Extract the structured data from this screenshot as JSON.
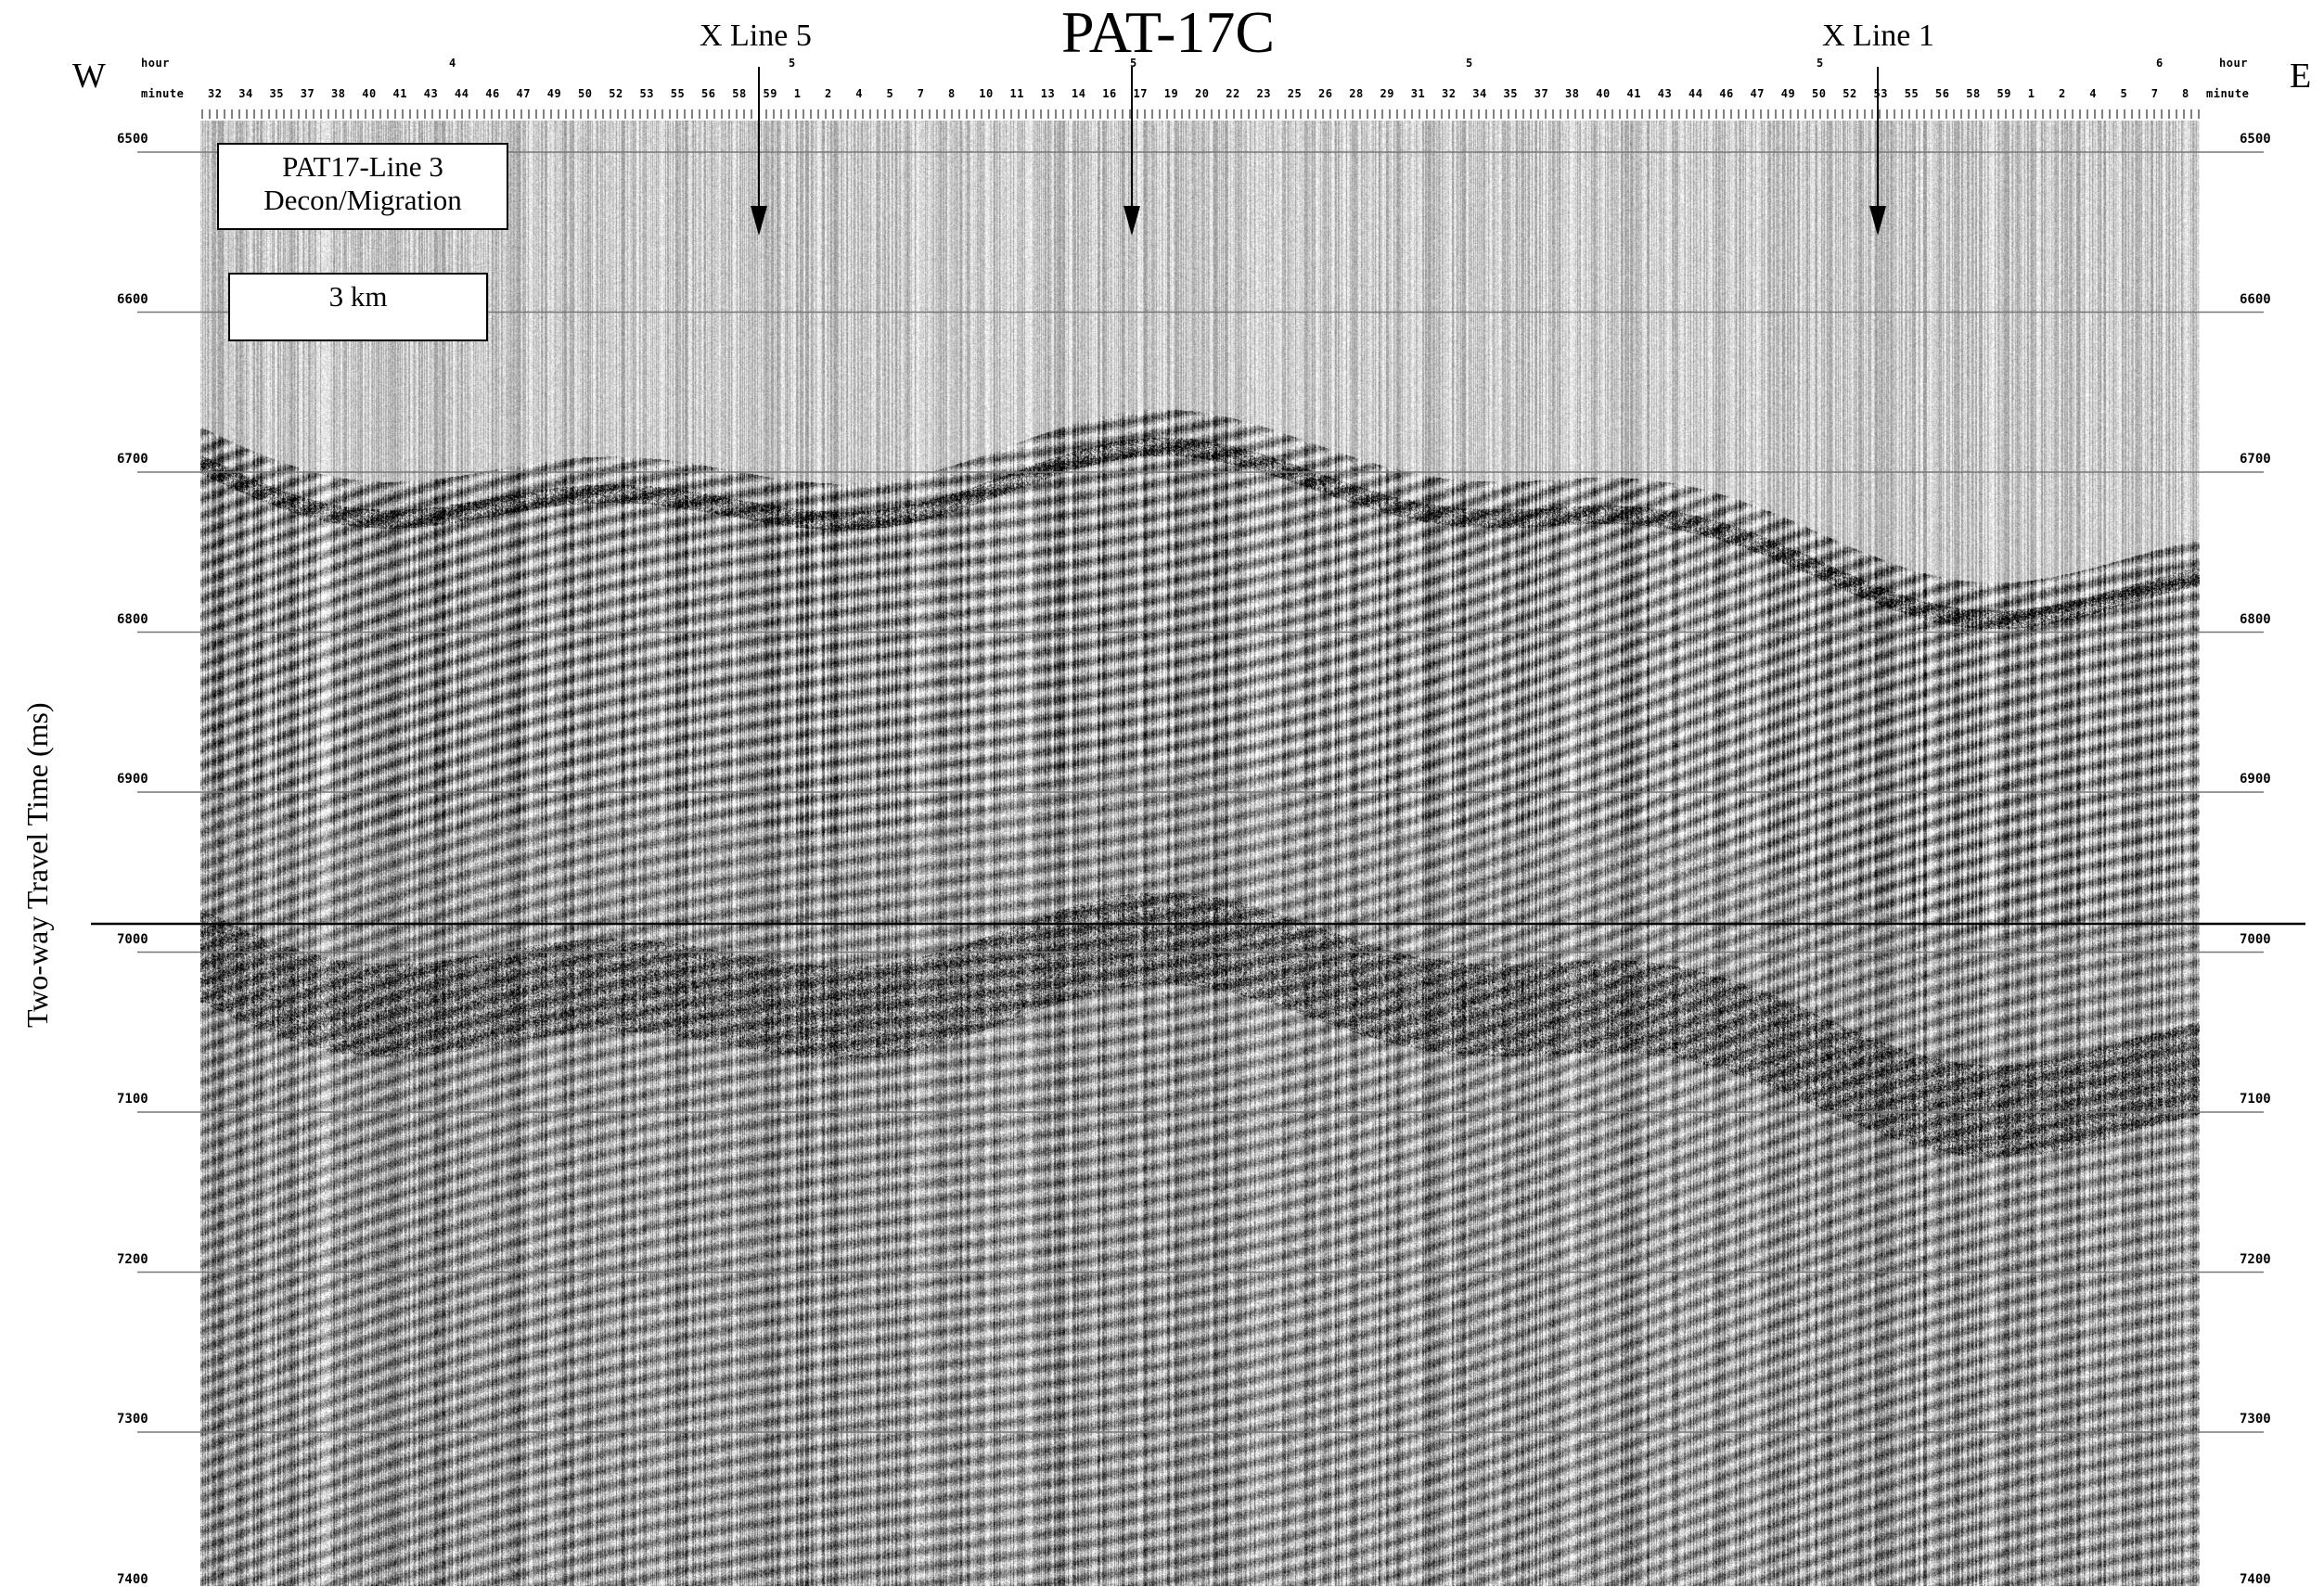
{
  "title": "PAT-17C",
  "west_label": "W",
  "east_label": "E",
  "crosslines": [
    {
      "label": "X Line 5"
    },
    {
      "label": "X Line 1"
    }
  ],
  "header": {
    "hour_row_label": "hour",
    "minute_row_label": "minute",
    "hour_values": [
      "4",
      "5",
      "5",
      "5",
      "5",
      "6"
    ],
    "minute_values": [
      "32",
      "34",
      "35",
      "37",
      "38",
      "40",
      "41",
      "43",
      "44",
      "46",
      "47",
      "49",
      "50",
      "52",
      "53",
      "55",
      "56",
      "58",
      "59",
      "1",
      "2",
      "4",
      "5",
      "7",
      "8",
      "10",
      "11",
      "13",
      "14",
      "16",
      "17",
      "19",
      "20",
      "22",
      "23",
      "25",
      "26",
      "28",
      "29",
      "31",
      "32",
      "34",
      "35",
      "37",
      "38",
      "40",
      "41",
      "43",
      "44",
      "46",
      "47",
      "49",
      "50",
      "52",
      "53",
      "55",
      "56",
      "58",
      "59",
      "1",
      "2",
      "4",
      "5",
      "7",
      "8"
    ]
  },
  "y_axis": {
    "label": "Two-way Travel Time (ms)",
    "ticks": [
      "6500",
      "6600",
      "6700",
      "6800",
      "6900",
      "7000",
      "7100",
      "7200",
      "7300",
      "7400"
    ]
  },
  "info_box": {
    "line1": "PAT17-Line 3",
    "line2": "Decon/Migration"
  },
  "scale_bar": {
    "label": "3 km"
  }
}
